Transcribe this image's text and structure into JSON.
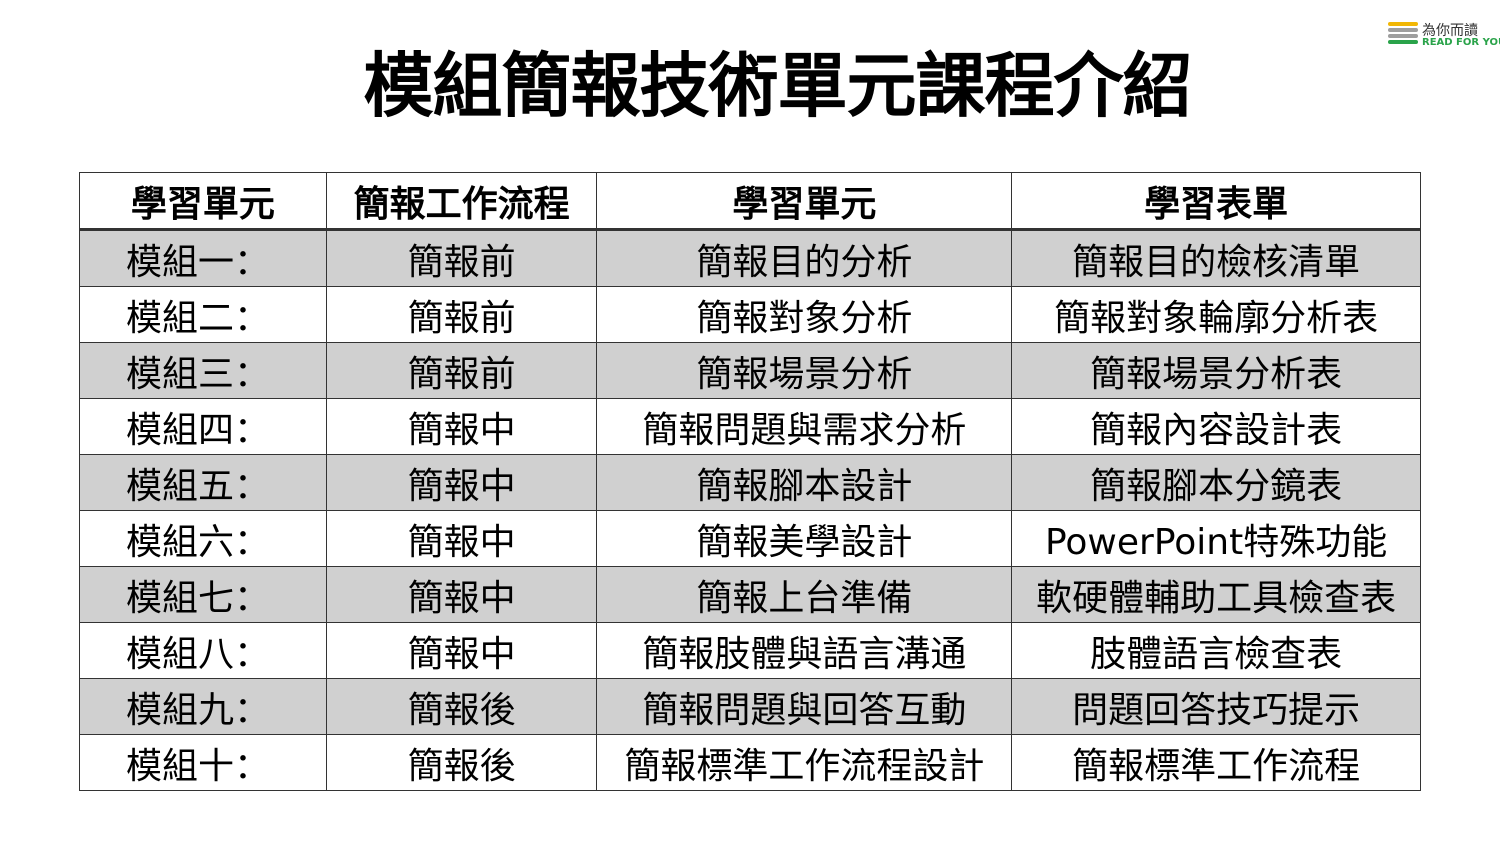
{
  "title": "模組簡報技術單元課程介紹",
  "logo": {
    "text_zh": "為你而讀",
    "text_en": "READ FOR YOU",
    "colors": [
      "#f2b705",
      "#9e9e9e",
      "#2aa34a"
    ]
  },
  "table": {
    "headers": [
      "學習單元",
      "簡報工作流程",
      "學習單元",
      "學習表單"
    ],
    "rows": [
      [
        "模組一：",
        "簡報前",
        "簡報目的分析",
        "簡報目的檢核清單"
      ],
      [
        "模組二：",
        "簡報前",
        "簡報對象分析",
        "簡報對象輪廓分析表"
      ],
      [
        "模組三：",
        "簡報前",
        "簡報場景分析",
        "簡報場景分析表"
      ],
      [
        "模組四：",
        "簡報中",
        "簡報問題與需求分析",
        "簡報內容設計表"
      ],
      [
        "模組五：",
        "簡報中",
        "簡報腳本設計",
        "簡報腳本分鏡表"
      ],
      [
        "模組六：",
        "簡報中",
        "簡報美學設計",
        "PowerPoint特殊功能"
      ],
      [
        "模組七：",
        "簡報中",
        "簡報上台準備",
        "軟硬體輔助工具檢查表"
      ],
      [
        "模組八：",
        "簡報中",
        "簡報肢體與語言溝通",
        "肢體語言檢查表"
      ],
      [
        "模組九：",
        "簡報後",
        "簡報問題與回答互動",
        "問題回答技巧提示"
      ],
      [
        "模組十：",
        "簡報後",
        "簡報標準工作流程設計",
        "簡報標準工作流程"
      ]
    ],
    "shade_color": "#d0d0d0"
  }
}
